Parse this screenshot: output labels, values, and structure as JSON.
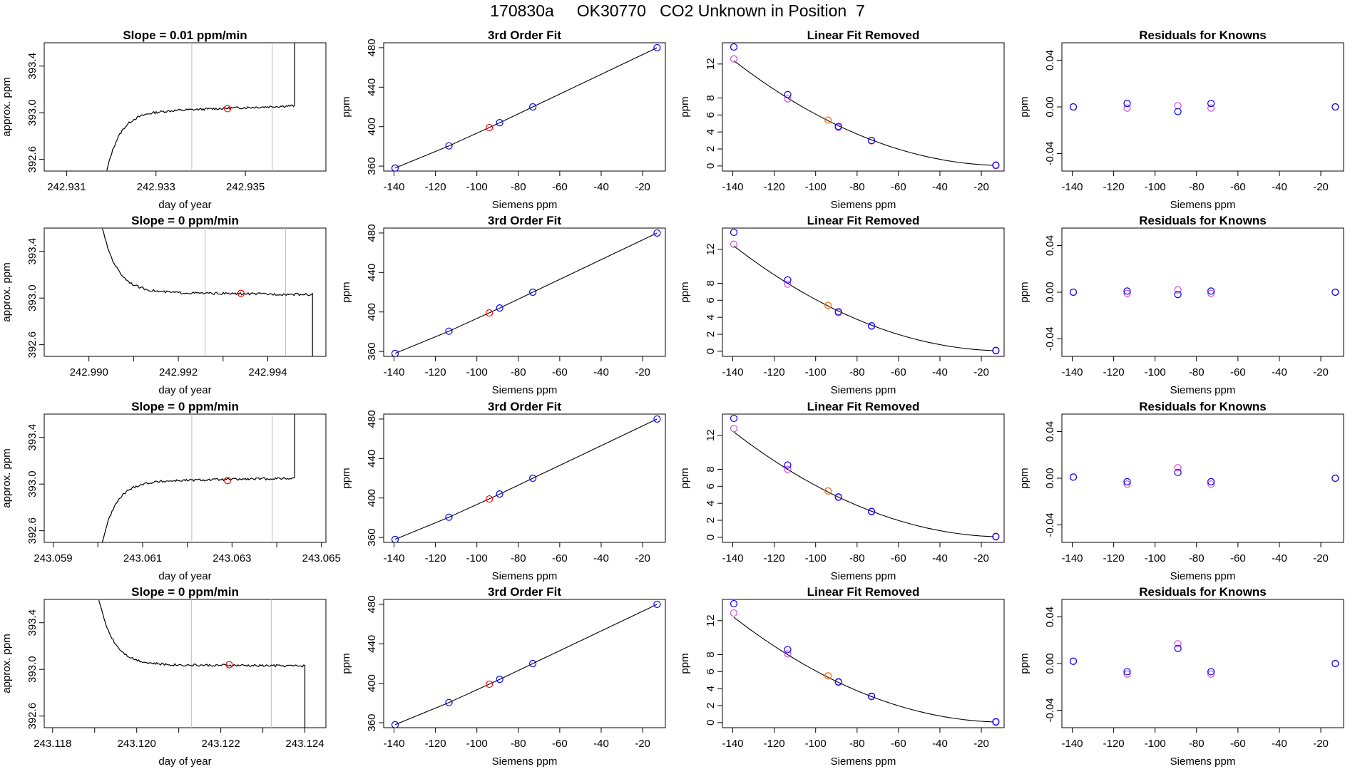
{
  "figure": {
    "title": "170830a     OK30770   CO2 Unknown in Position  7"
  },
  "colors": {
    "line": "#000000",
    "unknown_point": "#ff0000",
    "known_point": "#0000ff",
    "unknown_point_orange": "#ff6600",
    "residual_a": "#0000ff",
    "residual_b": "#d24ddc",
    "vline": "#bebebe"
  },
  "chart_data": [
    {
      "type": "line",
      "title": "Slope =  0.01  ppm/min",
      "xlabel": "day of year",
      "ylabel": "approx. ppm",
      "xlim": [
        242.9305,
        242.9368
      ],
      "ylim": [
        392.5,
        393.6
      ],
      "xticks": [
        242.931,
        242.933,
        242.935
      ],
      "xtick_labels": [
        "242.931",
        "242.933",
        "242.935"
      ],
      "yticks": [
        392.6,
        393.0,
        393.4
      ],
      "ytick_labels": [
        "392.6",
        "393.0",
        "393.4"
      ],
      "vlines": [
        242.9338,
        242.9356
      ],
      "marker": {
        "x": 242.9346,
        "y": 393.035
      },
      "trace": {
        "kind": "rise",
        "start_x": 242.9319,
        "end_x": 242.9361,
        "start_y": 392.5,
        "plateau": 393.0,
        "drift": 0.06,
        "tail_x": 242.9361,
        "tail_y": 393.6
      }
    },
    {
      "type": "line",
      "title": "3rd Order Fit",
      "xlabel": "Siemens ppm",
      "ylabel": "ppm",
      "xlim": [
        -145,
        -9
      ],
      "ylim": [
        355,
        485
      ],
      "xticks": [
        -140,
        -120,
        -100,
        -80,
        -60,
        -40,
        -20
      ],
      "yticks": [
        360,
        400,
        440,
        480
      ],
      "knowns": [
        [
          -139.5,
          358
        ],
        [
          -113.5,
          380.5
        ],
        [
          -89,
          404
        ],
        [
          -73,
          420
        ],
        [
          -13,
          480
        ]
      ],
      "unknown": [
        -94,
        399
      ],
      "curve": [
        [
          -139.5,
          358
        ],
        [
          -113.5,
          380.5
        ],
        [
          -89,
          404
        ],
        [
          -73,
          420
        ],
        [
          -13,
          480
        ]
      ]
    },
    {
      "type": "line",
      "title": "Linear Fit Removed",
      "xlabel": "Siemens ppm",
      "ylabel": "ppm",
      "xlim": [
        -145,
        -9
      ],
      "ylim": [
        -0.6,
        14.5
      ],
      "xticks": [
        -140,
        -120,
        -100,
        -80,
        -60,
        -40,
        -20
      ],
      "yticks": [
        0,
        2,
        4,
        6,
        8,
        12
      ],
      "knowns": [
        [
          -139.5,
          14.0
        ],
        [
          -113.5,
          8.4
        ],
        [
          -89,
          4.65
        ],
        [
          -73,
          3.0
        ],
        [
          -13,
          0.1
        ]
      ],
      "knowns_b": [
        [
          -139.5,
          12.6
        ],
        [
          -113.5,
          7.9
        ],
        [
          -89,
          4.55
        ],
        [
          -73,
          2.95
        ],
        [
          -13,
          0.05
        ]
      ],
      "unknown": [
        -94,
        5.4
      ],
      "curve_coef": {
        "a": 0.00131,
        "b": 0.0,
        "x0": -8
      }
    },
    {
      "type": "scatter",
      "title": "Residuals for Knowns",
      "xlabel": "Siemens ppm",
      "ylabel": "ppm",
      "xlim": [
        -145,
        -9
      ],
      "ylim": [
        -0.055,
        0.055
      ],
      "xticks": [
        -140,
        -120,
        -100,
        -80,
        -60,
        -40,
        -20
      ],
      "yticks": [
        -0.04,
        0.0,
        0.04
      ],
      "ytick_labels": [
        "-0.04",
        "0.00",
        "0.04"
      ],
      "series_a": [
        [
          -139.5,
          0.0
        ],
        [
          -113.5,
          0.003
        ],
        [
          -89,
          -0.004
        ],
        [
          -73,
          0.003
        ],
        [
          -13,
          0.0
        ]
      ],
      "series_b": [
        [
          -139.5,
          0.0
        ],
        [
          -113.5,
          -0.001
        ],
        [
          -89,
          0.001
        ],
        [
          -73,
          -0.001
        ],
        [
          -13,
          0.0
        ]
      ]
    },
    {
      "type": "line",
      "title": "Slope =  0  ppm/min",
      "xlabel": "day of year",
      "ylabel": "approx. ppm",
      "xlim": [
        242.989,
        242.9953
      ],
      "ylim": [
        392.5,
        393.6
      ],
      "xticks": [
        242.99,
        242.991,
        242.992,
        242.993,
        242.994
      ],
      "xtick_labels": [
        "242.990",
        "",
        "242.992",
        "",
        "242.994"
      ],
      "yticks": [
        392.6,
        393.0,
        393.4
      ],
      "ytick_labels": [
        "392.6",
        "393.0",
        "393.4"
      ],
      "vlines": [
        242.9926,
        242.9944
      ],
      "marker": {
        "x": 242.9934,
        "y": 393.04
      },
      "trace": {
        "kind": "fall",
        "start_x": 242.9903,
        "end_x": 242.995,
        "start_y": 393.6,
        "plateau": 393.05,
        "drift": -0.02,
        "tail_x": 242.995,
        "tail_y": 392.5
      }
    },
    {
      "type": "line",
      "title": "3rd Order Fit",
      "xlabel": "Siemens ppm",
      "ylabel": "ppm",
      "xlim": [
        -145,
        -9
      ],
      "ylim": [
        355,
        485
      ],
      "xticks": [
        -140,
        -120,
        -100,
        -80,
        -60,
        -40,
        -20
      ],
      "yticks": [
        360,
        400,
        440,
        480
      ],
      "knowns": [
        [
          -139.5,
          358
        ],
        [
          -113.5,
          380.5
        ],
        [
          -89,
          404
        ],
        [
          -73,
          420
        ],
        [
          -13,
          480
        ]
      ],
      "unknown": [
        -94,
        399
      ],
      "curve": [
        [
          -139.5,
          358
        ],
        [
          -113.5,
          380.5
        ],
        [
          -89,
          404
        ],
        [
          -73,
          420
        ],
        [
          -13,
          480
        ]
      ]
    },
    {
      "type": "line",
      "title": "Linear Fit Removed",
      "xlabel": "Siemens ppm",
      "ylabel": "ppm",
      "xlim": [
        -145,
        -9
      ],
      "ylim": [
        -0.6,
        14.5
      ],
      "xticks": [
        -140,
        -120,
        -100,
        -80,
        -60,
        -40,
        -20
      ],
      "yticks": [
        0,
        2,
        4,
        6,
        8,
        12
      ],
      "knowns": [
        [
          -139.5,
          14.0
        ],
        [
          -113.5,
          8.4
        ],
        [
          -89,
          4.65
        ],
        [
          -73,
          3.0
        ],
        [
          -13,
          0.1
        ]
      ],
      "knowns_b": [
        [
          -139.5,
          12.6
        ],
        [
          -113.5,
          7.9
        ],
        [
          -89,
          4.55
        ],
        [
          -73,
          2.95
        ],
        [
          -13,
          0.05
        ]
      ],
      "unknown": [
        -94,
        5.4
      ],
      "curve_coef": {
        "a": 0.00131,
        "b": 0.0,
        "x0": -8
      }
    },
    {
      "type": "scatter",
      "title": "Residuals for Knowns",
      "xlabel": "Siemens ppm",
      "ylabel": "ppm",
      "xlim": [
        -145,
        -9
      ],
      "ylim": [
        -0.055,
        0.055
      ],
      "xticks": [
        -140,
        -120,
        -100,
        -80,
        -60,
        -40,
        -20
      ],
      "yticks": [
        -0.04,
        0.0,
        0.04
      ],
      "ytick_labels": [
        "-0.04",
        "0.00",
        "0.04"
      ],
      "series_a": [
        [
          -139.5,
          0.0
        ],
        [
          -113.5,
          0.001
        ],
        [
          -89,
          -0.002
        ],
        [
          -73,
          0.001
        ],
        [
          -13,
          0.0
        ]
      ],
      "series_b": [
        [
          -139.5,
          0.0
        ],
        [
          -113.5,
          -0.001
        ],
        [
          -89,
          0.002
        ],
        [
          -73,
          -0.001
        ],
        [
          -13,
          0.0
        ]
      ]
    },
    {
      "type": "line",
      "title": "Slope =  0  ppm/min",
      "xlabel": "day of year",
      "ylabel": "approx. ppm",
      "xlim": [
        243.0588,
        243.0651
      ],
      "ylim": [
        392.5,
        393.6
      ],
      "xticks": [
        243.059,
        243.06,
        243.061,
        243.062,
        243.063,
        243.064,
        243.065
      ],
      "xtick_labels": [
        "243.059",
        "",
        "243.061",
        "",
        "243.063",
        "",
        "243.065"
      ],
      "yticks": [
        392.6,
        393.0,
        393.4
      ],
      "ytick_labels": [
        "392.6",
        "393.0",
        "393.4"
      ],
      "vlines": [
        243.0621,
        243.0639
      ],
      "marker": {
        "x": 243.0629,
        "y": 393.03
      },
      "trace": {
        "kind": "rise",
        "start_x": 243.0601,
        "end_x": 243.0644,
        "start_y": 392.5,
        "plateau": 393.02,
        "drift": 0.03,
        "tail_x": 243.0644,
        "tail_y": 393.6
      }
    },
    {
      "type": "line",
      "title": "3rd Order Fit",
      "xlabel": "Siemens ppm",
      "ylabel": "ppm",
      "xlim": [
        -145,
        -9
      ],
      "ylim": [
        355,
        485
      ],
      "xticks": [
        -140,
        -120,
        -100,
        -80,
        -60,
        -40,
        -20
      ],
      "yticks": [
        360,
        400,
        440,
        480
      ],
      "knowns": [
        [
          -139.5,
          358
        ],
        [
          -113.5,
          380.5
        ],
        [
          -89,
          404
        ],
        [
          -73,
          420
        ],
        [
          -13,
          480
        ]
      ],
      "unknown": [
        -94,
        399
      ],
      "curve": [
        [
          -139.5,
          358
        ],
        [
          -113.5,
          380.5
        ],
        [
          -89,
          404
        ],
        [
          -73,
          420
        ],
        [
          -13,
          480
        ]
      ]
    },
    {
      "type": "line",
      "title": "Linear Fit Removed",
      "xlabel": "Siemens ppm",
      "ylabel": "ppm",
      "xlim": [
        -145,
        -9
      ],
      "ylim": [
        -0.6,
        14.5
      ],
      "xticks": [
        -140,
        -120,
        -100,
        -80,
        -60,
        -40,
        -20
      ],
      "yticks": [
        0,
        2,
        4,
        6,
        8,
        12
      ],
      "knowns": [
        [
          -139.5,
          14.0
        ],
        [
          -113.5,
          8.5
        ],
        [
          -89,
          4.75
        ],
        [
          -73,
          3.05
        ],
        [
          -13,
          0.1
        ]
      ],
      "knowns_b": [
        [
          -139.5,
          12.8
        ],
        [
          -113.5,
          8.0
        ],
        [
          -89,
          4.7
        ],
        [
          -73,
          3.0
        ],
        [
          -13,
          0.05
        ]
      ],
      "unknown": [
        -94,
        5.45
      ],
      "curve_coef": {
        "a": 0.00131,
        "b": 0.0,
        "x0": -8
      }
    },
    {
      "type": "scatter",
      "title": "Residuals for Knowns",
      "xlabel": "Siemens ppm",
      "ylabel": "ppm",
      "xlim": [
        -145,
        -9
      ],
      "ylim": [
        -0.055,
        0.055
      ],
      "xticks": [
        -140,
        -120,
        -100,
        -80,
        -60,
        -40,
        -20
      ],
      "yticks": [
        -0.04,
        0.0,
        0.04
      ],
      "ytick_labels": [
        "-0.04",
        "0.00",
        "0.04"
      ],
      "series_a": [
        [
          -139.5,
          0.001
        ],
        [
          -113.5,
          -0.003
        ],
        [
          -89,
          0.005
        ],
        [
          -73,
          -0.003
        ],
        [
          -13,
          0.0
        ]
      ],
      "series_b": [
        [
          -139.5,
          0.001
        ],
        [
          -113.5,
          -0.005
        ],
        [
          -89,
          0.009
        ],
        [
          -73,
          -0.005
        ],
        [
          -13,
          0.0
        ]
      ]
    },
    {
      "type": "line",
      "title": "Slope =  0  ppm/min",
      "xlabel": "day of year",
      "ylabel": "approx. ppm",
      "xlim": [
        243.1178,
        243.1245
      ],
      "ylim": [
        392.5,
        393.6
      ],
      "xticks": [
        243.118,
        243.119,
        243.12,
        243.121,
        243.122,
        243.123,
        243.124
      ],
      "xtick_labels": [
        "243.118",
        "",
        "243.120",
        "",
        "243.122",
        "",
        "243.124"
      ],
      "yticks": [
        392.6,
        393.0,
        393.4
      ],
      "ytick_labels": [
        "392.6",
        "393.0",
        "393.4"
      ],
      "vlines": [
        243.1213,
        243.1232
      ],
      "marker": {
        "x": 243.1222,
        "y": 393.04
      },
      "trace": {
        "kind": "fall",
        "start_x": 243.1191,
        "end_x": 243.124,
        "start_y": 393.6,
        "plateau": 393.04,
        "drift": -0.01,
        "tail_x": 243.124,
        "tail_y": 392.5
      }
    },
    {
      "type": "line",
      "title": "3rd Order Fit",
      "xlabel": "Siemens ppm",
      "ylabel": "ppm",
      "xlim": [
        -145,
        -9
      ],
      "ylim": [
        355,
        485
      ],
      "xticks": [
        -140,
        -120,
        -100,
        -80,
        -60,
        -40,
        -20
      ],
      "yticks": [
        360,
        400,
        440,
        480
      ],
      "knowns": [
        [
          -139.5,
          358
        ],
        [
          -113.5,
          380.5
        ],
        [
          -89,
          404
        ],
        [
          -73,
          420
        ],
        [
          -13,
          480
        ]
      ],
      "unknown": [
        -94,
        399
      ],
      "curve": [
        [
          -139.5,
          358
        ],
        [
          -113.5,
          380.5
        ],
        [
          -89,
          404
        ],
        [
          -73,
          420
        ],
        [
          -13,
          480
        ]
      ]
    },
    {
      "type": "line",
      "title": "Linear Fit Removed",
      "xlabel": "Siemens ppm",
      "ylabel": "ppm",
      "xlim": [
        -145,
        -9
      ],
      "ylim": [
        -0.6,
        14.5
      ],
      "xticks": [
        -140,
        -120,
        -100,
        -80,
        -60,
        -40,
        -20
      ],
      "yticks": [
        0,
        2,
        4,
        6,
        8,
        12
      ],
      "knowns": [
        [
          -139.5,
          14.0
        ],
        [
          -113.5,
          8.6
        ],
        [
          -89,
          4.8
        ],
        [
          -73,
          3.1
        ],
        [
          -13,
          0.1
        ]
      ],
      "knowns_b": [
        [
          -139.5,
          12.9
        ],
        [
          -113.5,
          8.1
        ],
        [
          -89,
          4.75
        ],
        [
          -73,
          3.05
        ],
        [
          -13,
          0.05
        ]
      ],
      "unknown": [
        -94,
        5.5
      ],
      "curve_coef": {
        "a": 0.00131,
        "b": 0.0,
        "x0": -8
      }
    },
    {
      "type": "scatter",
      "title": "Residuals for Knowns",
      "xlabel": "Siemens ppm",
      "ylabel": "ppm",
      "xlim": [
        -145,
        -9
      ],
      "ylim": [
        -0.055,
        0.055
      ],
      "xticks": [
        -140,
        -120,
        -100,
        -80,
        -60,
        -40,
        -20
      ],
      "yticks": [
        -0.04,
        0.0,
        0.04
      ],
      "ytick_labels": [
        "-0.04",
        "0.00",
        "0.04"
      ],
      "series_a": [
        [
          -139.5,
          0.002
        ],
        [
          -113.5,
          -0.007
        ],
        [
          -89,
          0.013
        ],
        [
          -73,
          -0.007
        ],
        [
          -13,
          0.0
        ]
      ],
      "series_b": [
        [
          -139.5,
          0.002
        ],
        [
          -113.5,
          -0.009
        ],
        [
          -89,
          0.017
        ],
        [
          -73,
          -0.009
        ],
        [
          -13,
          0.0
        ]
      ]
    }
  ]
}
